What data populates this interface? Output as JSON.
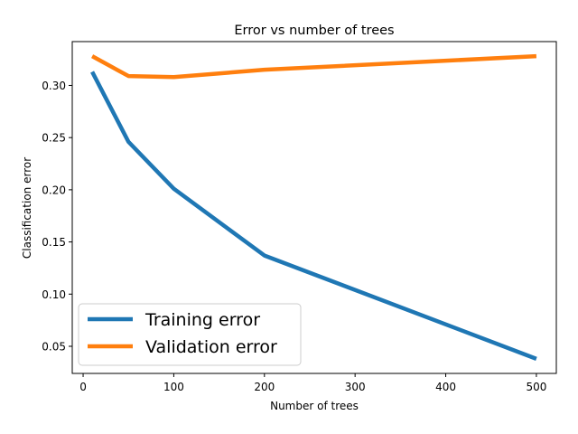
{
  "chart_data": {
    "type": "line",
    "title": "Error vs number of trees",
    "xlabel": "Number of trees",
    "ylabel": "Classification error",
    "xlim": [
      -12,
      522
    ],
    "ylim": [
      0.024,
      0.342
    ],
    "xticks": [
      0,
      100,
      200,
      300,
      400,
      500
    ],
    "yticks": [
      0.05,
      0.1,
      0.15,
      0.2,
      0.25,
      0.3
    ],
    "ytick_labels": [
      "0.05",
      "0.10",
      "0.15",
      "0.20",
      "0.25",
      "0.30"
    ],
    "grid": false,
    "legend_position": "lower-left",
    "series": [
      {
        "name": "Training error",
        "color": "#1f77b4",
        "x": [
          10,
          50,
          100,
          200,
          500
        ],
        "y": [
          0.313,
          0.246,
          0.201,
          0.137,
          0.038
        ]
      },
      {
        "name": "Validation error",
        "color": "#ff7f0e",
        "x": [
          10,
          50,
          100,
          200,
          500
        ],
        "y": [
          0.328,
          0.309,
          0.308,
          0.315,
          0.328
        ]
      }
    ]
  }
}
